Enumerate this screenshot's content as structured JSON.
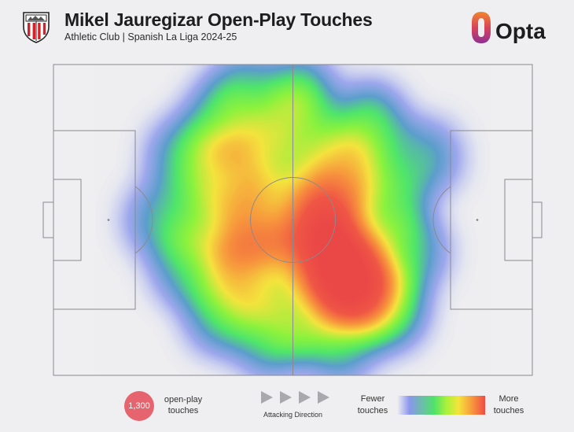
{
  "header": {
    "title": "Mikel Jauregizar Open-Play Touches",
    "subtitle": "Athletic Club | Spanish La Liga 2024-25",
    "brand": "Opta"
  },
  "legend": {
    "touches_value": "1,300",
    "touches_label": "open-play touches",
    "direction_label": "Attacking Direction",
    "fewer_label": "Fewer touches",
    "more_label": "More touches"
  },
  "colors": {
    "background": "#efeff1",
    "pitch_lines": "#8a8a8e",
    "badge": "#e6646e",
    "opta_orange": "#f0852d",
    "opta_purple": "#a2358e"
  },
  "chart_data": {
    "type": "heatmap",
    "title": "Mikel Jauregizar Open-Play Touches",
    "subtitle": "Athletic Club | Spanish La Liga 2024-25",
    "total_touches": 1300,
    "x_range": [
      0,
      100
    ],
    "y_range": [
      0,
      100
    ],
    "x_direction": "attacking left-to-right",
    "color_scale": [
      "low: blue",
      "green",
      "yellow",
      "orange",
      "high: red"
    ],
    "hotspots": [
      {
        "x": 61,
        "y": 67,
        "intensity": 1.0
      },
      {
        "x": 58,
        "y": 63,
        "intensity": 0.85
      },
      {
        "x": 64,
        "y": 72,
        "intensity": 0.8
      },
      {
        "x": 60,
        "y": 35,
        "intensity": 0.72
      },
      {
        "x": 57,
        "y": 45,
        "intensity": 0.6
      },
      {
        "x": 55,
        "y": 55,
        "intensity": 0.55
      },
      {
        "x": 41,
        "y": 67,
        "intensity": 0.72
      },
      {
        "x": 41,
        "y": 55,
        "intensity": 0.5
      },
      {
        "x": 36,
        "y": 35,
        "intensity": 0.55
      },
      {
        "x": 43,
        "y": 30,
        "intensity": 0.5
      },
      {
        "x": 48,
        "y": 48,
        "intensity": 0.5
      },
      {
        "x": 33,
        "y": 52,
        "intensity": 0.42
      },
      {
        "x": 50,
        "y": 18,
        "intensity": 0.45
      },
      {
        "x": 35,
        "y": 18,
        "intensity": 0.35
      },
      {
        "x": 66,
        "y": 20,
        "intensity": 0.42
      },
      {
        "x": 70,
        "y": 45,
        "intensity": 0.4
      },
      {
        "x": 70,
        "y": 78,
        "intensity": 0.45
      },
      {
        "x": 52,
        "y": 82,
        "intensity": 0.4
      },
      {
        "x": 35,
        "y": 80,
        "intensity": 0.32
      },
      {
        "x": 28,
        "y": 65,
        "intensity": 0.28
      },
      {
        "x": 27,
        "y": 30,
        "intensity": 0.28
      },
      {
        "x": 45,
        "y": 88,
        "intensity": 0.28
      },
      {
        "x": 60,
        "y": 90,
        "intensity": 0.25
      },
      {
        "x": 75,
        "y": 60,
        "intensity": 0.25
      },
      {
        "x": 22,
        "y": 50,
        "intensity": 0.2
      },
      {
        "x": 52,
        "y": 8,
        "intensity": 0.2
      },
      {
        "x": 40,
        "y": 7,
        "intensity": 0.18
      },
      {
        "x": 78,
        "y": 30,
        "intensity": 0.2
      }
    ]
  }
}
